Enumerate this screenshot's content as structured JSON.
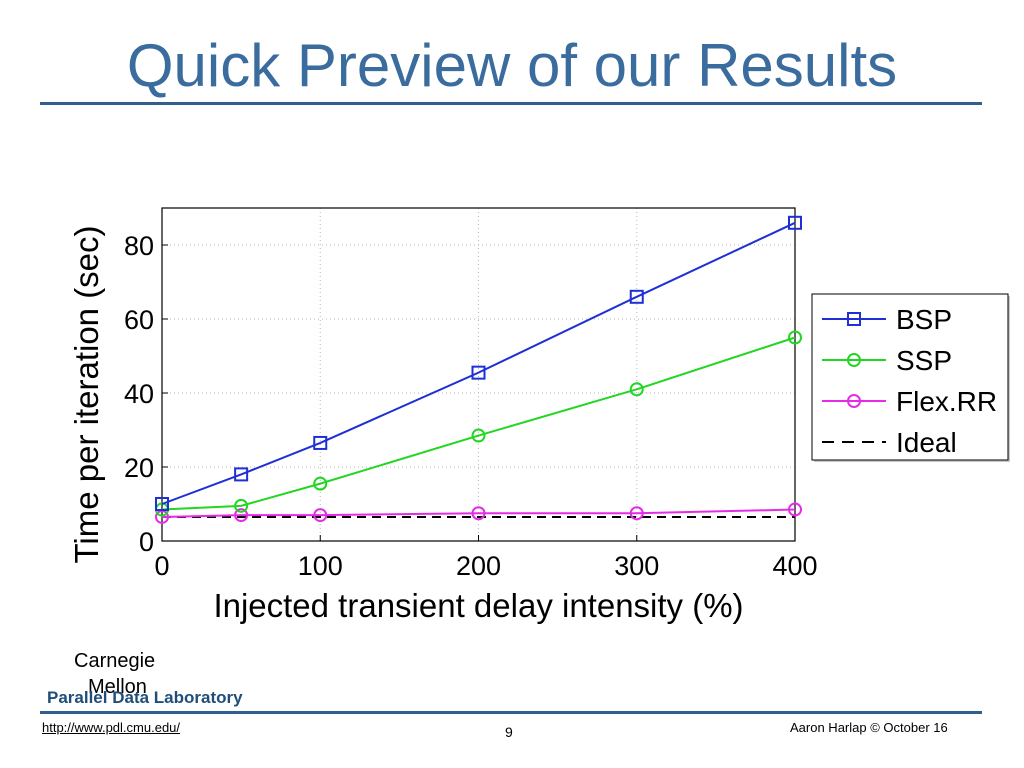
{
  "slide": {
    "title": "Quick Preview of our Results",
    "org_line1": "Carnegie",
    "org_line2": "Mellon",
    "lab": "Parallel Data Laboratory",
    "url": "http://www.pdl.cmu.edu/",
    "page_number": "9",
    "copyright": "Aaron Harlap © October 16"
  },
  "chart_data": {
    "type": "line",
    "xlabel": "Injected transient delay intensity (%)",
    "ylabel": "Time per iteration (sec)",
    "xlim": [
      0,
      400
    ],
    "ylim": [
      0,
      90
    ],
    "xticks": [
      0,
      100,
      200,
      300,
      400
    ],
    "yticks": [
      0,
      20,
      40,
      60,
      80
    ],
    "xtick_labels": [
      "0",
      "100",
      "200",
      "300",
      "400"
    ],
    "ytick_labels": [
      "0",
      "20",
      "40",
      "60",
      "80"
    ],
    "grid": true,
    "legend_position": "right-outside",
    "x": [
      0,
      50,
      100,
      200,
      300,
      400
    ],
    "series": [
      {
        "name": "BSP",
        "color": "#1f2fd6",
        "marker": "square",
        "dash": "solid",
        "values": [
          10,
          18,
          26.5,
          45.5,
          66,
          86
        ]
      },
      {
        "name": "SSP",
        "color": "#22d622",
        "marker": "circle",
        "dash": "solid",
        "values": [
          8.5,
          9.5,
          15.5,
          28.5,
          41,
          55
        ]
      },
      {
        "name": "Flex.RR",
        "color": "#e62be6",
        "marker": "circle",
        "dash": "solid",
        "values": [
          6.5,
          7,
          7,
          7.5,
          7.5,
          8.5
        ]
      },
      {
        "name": "Ideal",
        "color": "#000000",
        "marker": "none",
        "dash": "dashed",
        "values": [
          6.5,
          6.5,
          6.5,
          6.5,
          6.5,
          6.5
        ]
      }
    ]
  }
}
